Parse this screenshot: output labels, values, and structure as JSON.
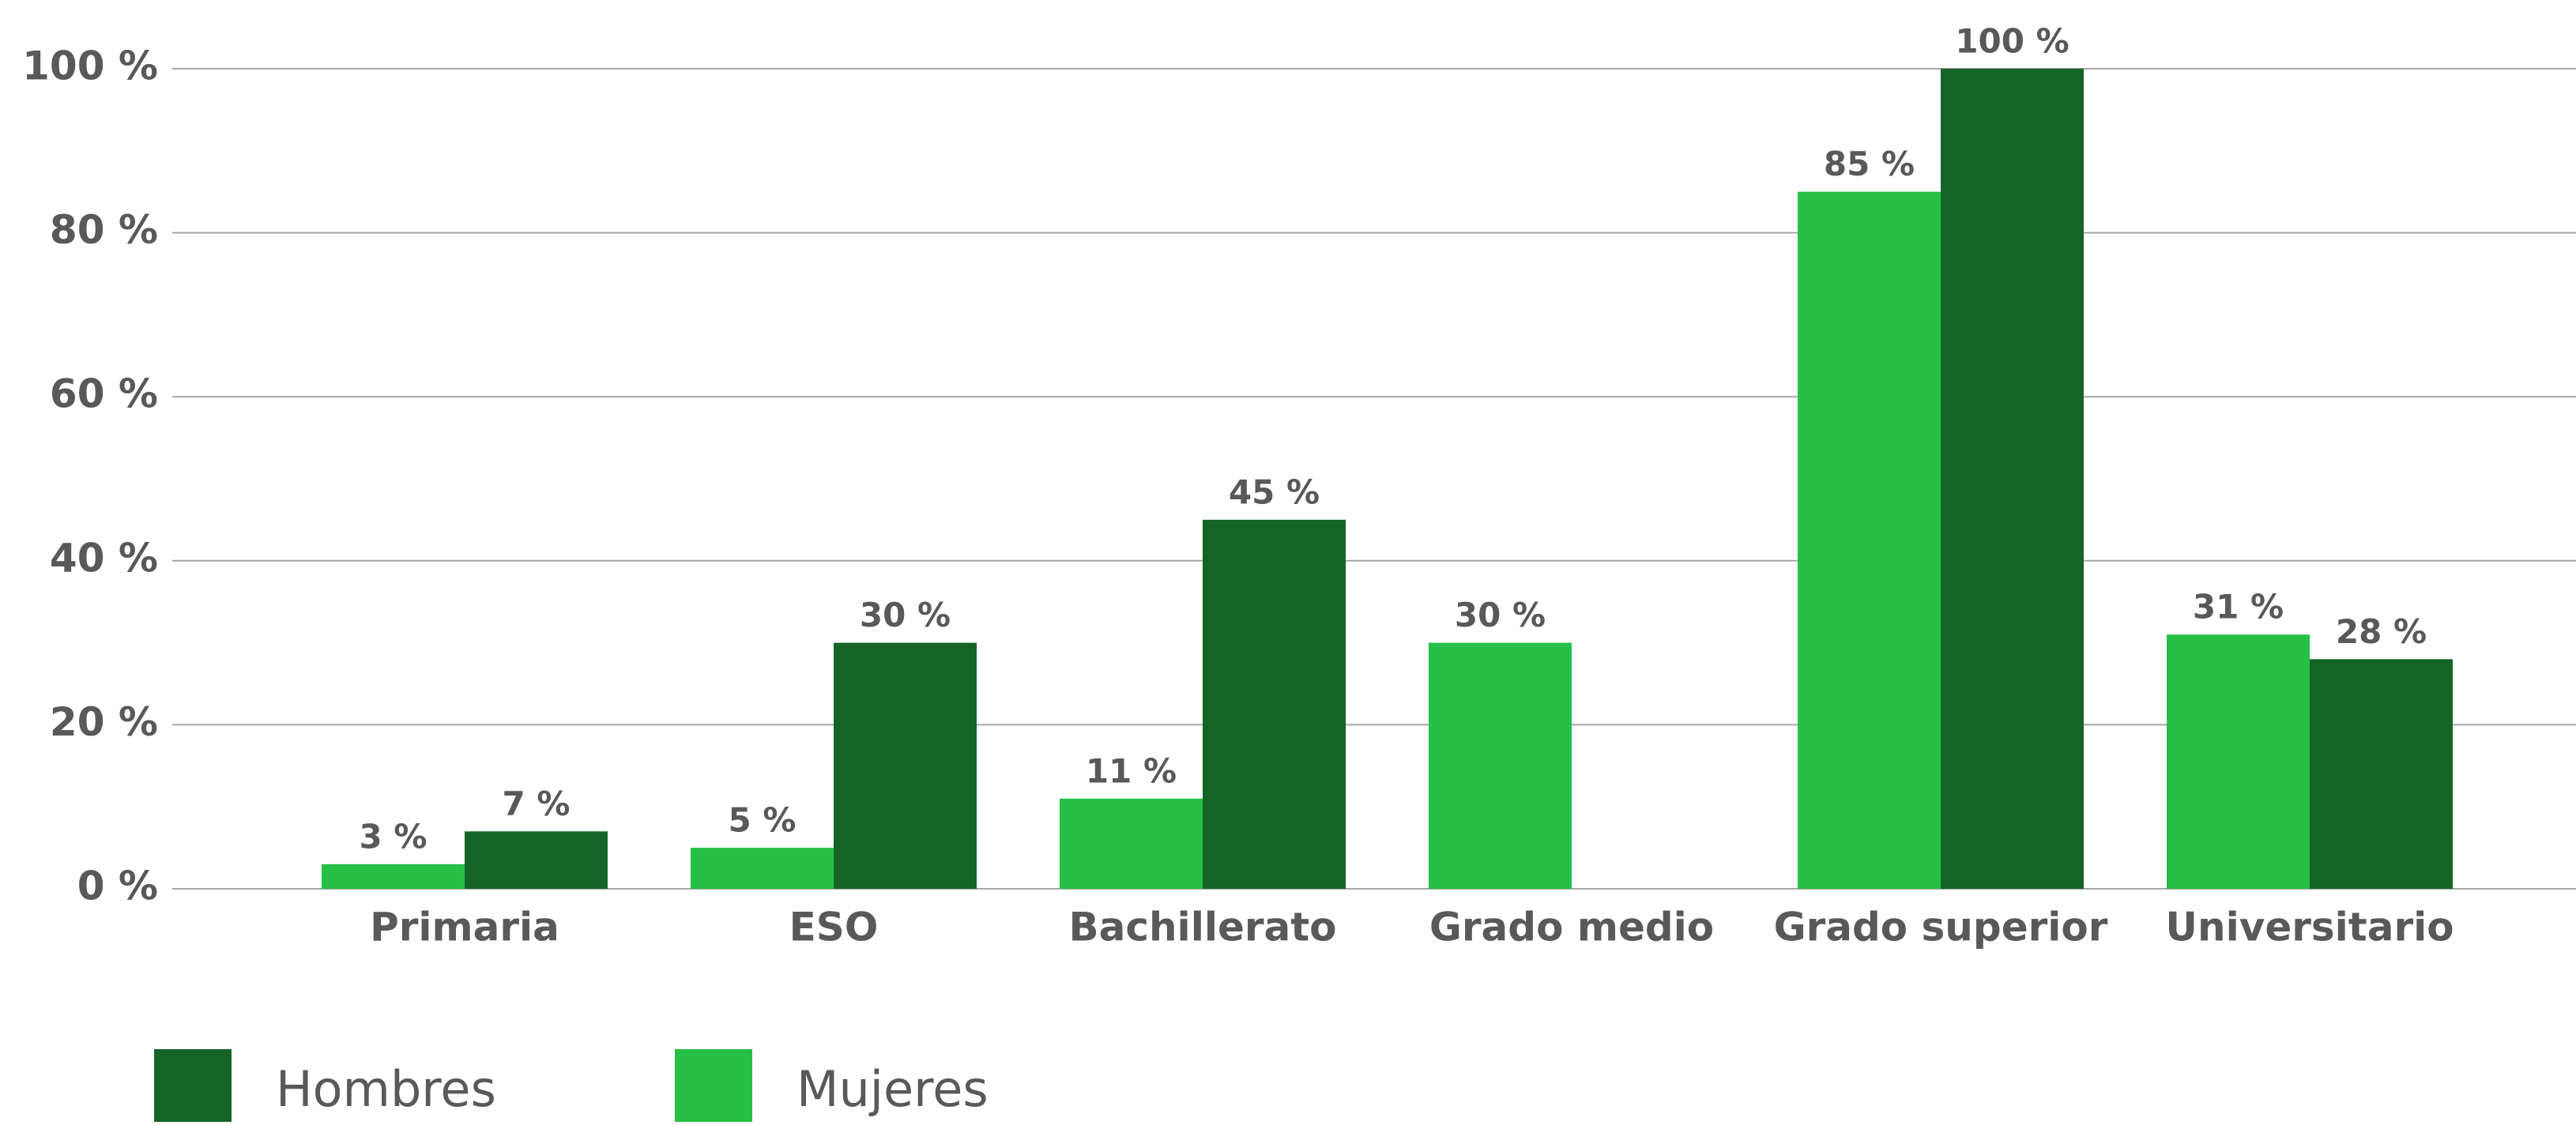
{
  "chart_data": {
    "type": "bar",
    "categories": [
      "Primaria",
      "ESO",
      "Bachillerato",
      "Grado medio",
      "Grado superior",
      "Universitario"
    ],
    "series": [
      {
        "name": "Mujeres",
        "color": "#26c047",
        "values": [
          3,
          5,
          11,
          30,
          85,
          31
        ],
        "value_labels": [
          "3 %",
          "5 %",
          "11 %",
          "30 %",
          "85 %",
          "31 %"
        ]
      },
      {
        "name": "Hombres",
        "color": "#146428",
        "values": [
          7,
          30,
          45,
          null,
          100,
          28
        ],
        "value_labels": [
          "7 %",
          "30 %",
          "45 %",
          null,
          "100 %",
          "28 %"
        ]
      }
    ],
    "legend_order": [
      "Hombres",
      "Mujeres"
    ],
    "ylim": [
      0,
      100
    ],
    "yticks": [
      {
        "value": 0,
        "label": "0 %"
      },
      {
        "value": 20,
        "label": "20 %"
      },
      {
        "value": 40,
        "label": "40 %"
      },
      {
        "value": 60,
        "label": "60 %"
      },
      {
        "value": 80,
        "label": "80 %"
      },
      {
        "value": 100,
        "label": "100 %"
      }
    ],
    "grid": true,
    "legend": "bottom-left"
  }
}
